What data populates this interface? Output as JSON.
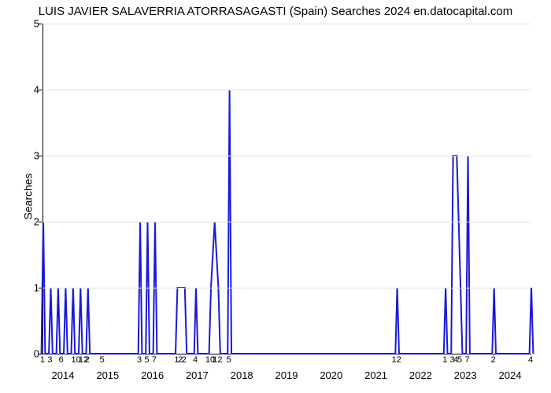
{
  "chart": {
    "type": "line",
    "title": "LUIS JAVIER SALAVERRIA ATORRASAGASTI (Spain) Searches 2024 en.datocapital.com",
    "title_fontsize": 15,
    "title_color": "#000000",
    "ylabel": "Searches",
    "ylabel_fontsize": 14,
    "background_color": "#ffffff",
    "grid_color": "#e0e0e0",
    "axis_color": "#000000",
    "line_color": "#1919d8",
    "line_width": 2,
    "ylim": [
      0,
      5
    ],
    "yticks": [
      0,
      1,
      2,
      3,
      4,
      5
    ],
    "year_labels": [
      "2014",
      "2015",
      "2016",
      "2017",
      "2018",
      "2019",
      "2020",
      "2021",
      "2022",
      "2023",
      "2024"
    ],
    "n_points": 132,
    "xtick_labels": [
      {
        "i": 0,
        "t": "1"
      },
      {
        "i": 2,
        "t": "3"
      },
      {
        "i": 5,
        "t": "6"
      },
      {
        "i": 9,
        "t": "10"
      },
      {
        "i": 11,
        "t": "12"
      },
      {
        "i": 12,
        "t": "2"
      },
      {
        "i": 16,
        "t": "5"
      },
      {
        "i": 26,
        "t": "3"
      },
      {
        "i": 28,
        "t": "5"
      },
      {
        "i": 30,
        "t": "7"
      },
      {
        "i": 36,
        "t": "1"
      },
      {
        "i": 37,
        "t": "2"
      },
      {
        "i": 38,
        "t": "2"
      },
      {
        "i": 41,
        "t": "4"
      },
      {
        "i": 45,
        "t": "10"
      },
      {
        "i": 46,
        "t": "1"
      },
      {
        "i": 47,
        "t": "12"
      },
      {
        "i": 50,
        "t": "5"
      },
      {
        "i": 95,
        "t": "12"
      },
      {
        "i": 108,
        "t": "1"
      },
      {
        "i": 110,
        "t": "3"
      },
      {
        "i": 111,
        "t": "4"
      },
      {
        "i": 112,
        "t": "5"
      },
      {
        "i": 114,
        "t": "7"
      },
      {
        "i": 121,
        "t": "2"
      },
      {
        "i": 131,
        "t": "4"
      }
    ],
    "values": [
      2,
      0,
      1,
      0,
      1,
      0,
      1,
      0,
      1,
      0,
      1,
      0,
      1,
      0,
      0,
      0,
      0,
      0,
      0,
      0,
      0,
      0,
      0,
      0,
      0,
      0,
      2,
      0,
      2,
      0,
      2,
      0,
      0,
      0,
      0,
      0,
      1,
      1,
      1,
      0,
      0,
      1,
      0,
      0,
      0,
      1,
      2,
      1,
      0,
      0,
      4,
      0,
      0,
      0,
      0,
      0,
      0,
      0,
      0,
      0,
      0,
      0,
      0,
      0,
      0,
      0,
      0,
      0,
      0,
      0,
      0,
      0,
      0,
      0,
      0,
      0,
      0,
      0,
      0,
      0,
      0,
      0,
      0,
      0,
      0,
      0,
      0,
      0,
      0,
      0,
      0,
      0,
      0,
      0,
      0,
      1,
      0,
      0,
      0,
      0,
      0,
      0,
      0,
      0,
      0,
      0,
      0,
      0,
      1,
      0,
      3,
      3,
      1,
      0,
      3,
      0,
      0,
      0,
      0,
      0,
      0,
      1,
      0,
      0,
      0,
      0,
      0,
      0,
      0,
      0,
      0,
      1
    ]
  }
}
